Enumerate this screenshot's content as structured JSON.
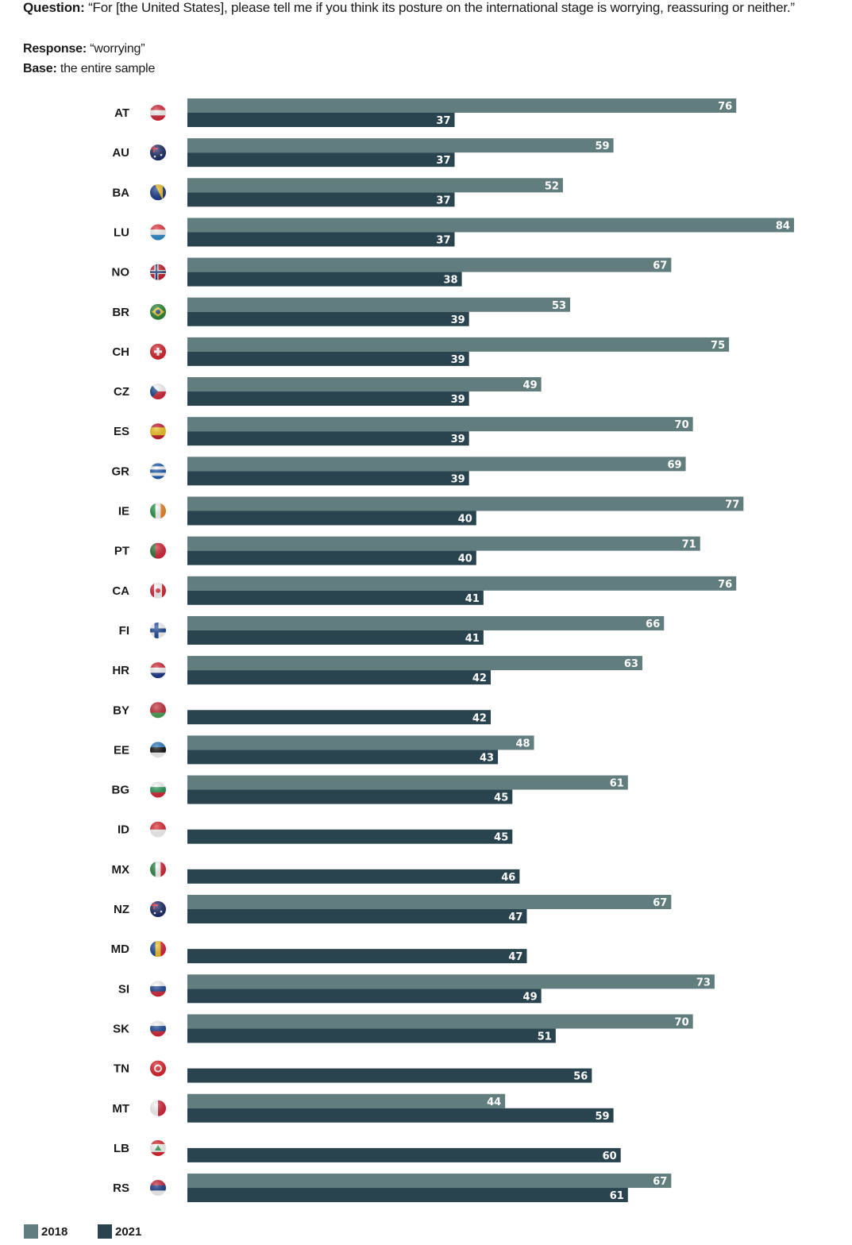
{
  "header": {
    "question_label": "Question:",
    "question_text": "“For [the United States], please tell me if you think its posture on the international stage is worrying, reassuring or neither.”",
    "response_label": "Response:",
    "response_text": "“worrying”",
    "base_label": "Base:",
    "base_text": "the entire sample"
  },
  "colors": {
    "s2018": "#617d7e",
    "s2021": "#29444f"
  },
  "chart_data": {
    "type": "bar",
    "orientation": "horizontal",
    "title": "",
    "xlabel": "",
    "ylabel": "",
    "xlim": [
      0,
      100
    ],
    "grid": false,
    "legend_position": "bottom-left",
    "categories": [
      "AT",
      "AU",
      "BA",
      "LU",
      "NO",
      "BR",
      "CH",
      "CZ",
      "ES",
      "GR",
      "IE",
      "PT",
      "CA",
      "FI",
      "HR",
      "BY",
      "EE",
      "BG",
      "ID",
      "MX",
      "NZ",
      "MD",
      "SI",
      "SK",
      "TN",
      "MT",
      "LB",
      "RS"
    ],
    "flags": [
      "flag-austria",
      "flag-australia",
      "flag-bosnia",
      "flag-luxembourg",
      "flag-norway",
      "flag-brazil",
      "flag-switzerland",
      "flag-czechia",
      "flag-spain",
      "flag-greece",
      "flag-ireland",
      "flag-portugal",
      "flag-canada",
      "flag-finland",
      "flag-croatia",
      "flag-belarus",
      "flag-estonia",
      "flag-bulgaria",
      "flag-indonesia",
      "flag-mexico",
      "flag-new-zealand",
      "flag-moldova",
      "flag-slovenia",
      "flag-slovakia",
      "flag-tunisia",
      "flag-malta",
      "flag-lebanon",
      "flag-serbia"
    ],
    "series": [
      {
        "name": "2018",
        "values": [
          76,
          59,
          52,
          84,
          67,
          53,
          75,
          49,
          70,
          69,
          77,
          71,
          76,
          66,
          63,
          null,
          48,
          61,
          null,
          null,
          67,
          null,
          73,
          70,
          null,
          44,
          null,
          67
        ]
      },
      {
        "name": "2021",
        "values": [
          37,
          37,
          37,
          37,
          38,
          39,
          39,
          39,
          39,
          39,
          40,
          40,
          41,
          41,
          42,
          42,
          43,
          45,
          45,
          46,
          47,
          47,
          49,
          51,
          56,
          59,
          60,
          61
        ]
      }
    ]
  }
}
